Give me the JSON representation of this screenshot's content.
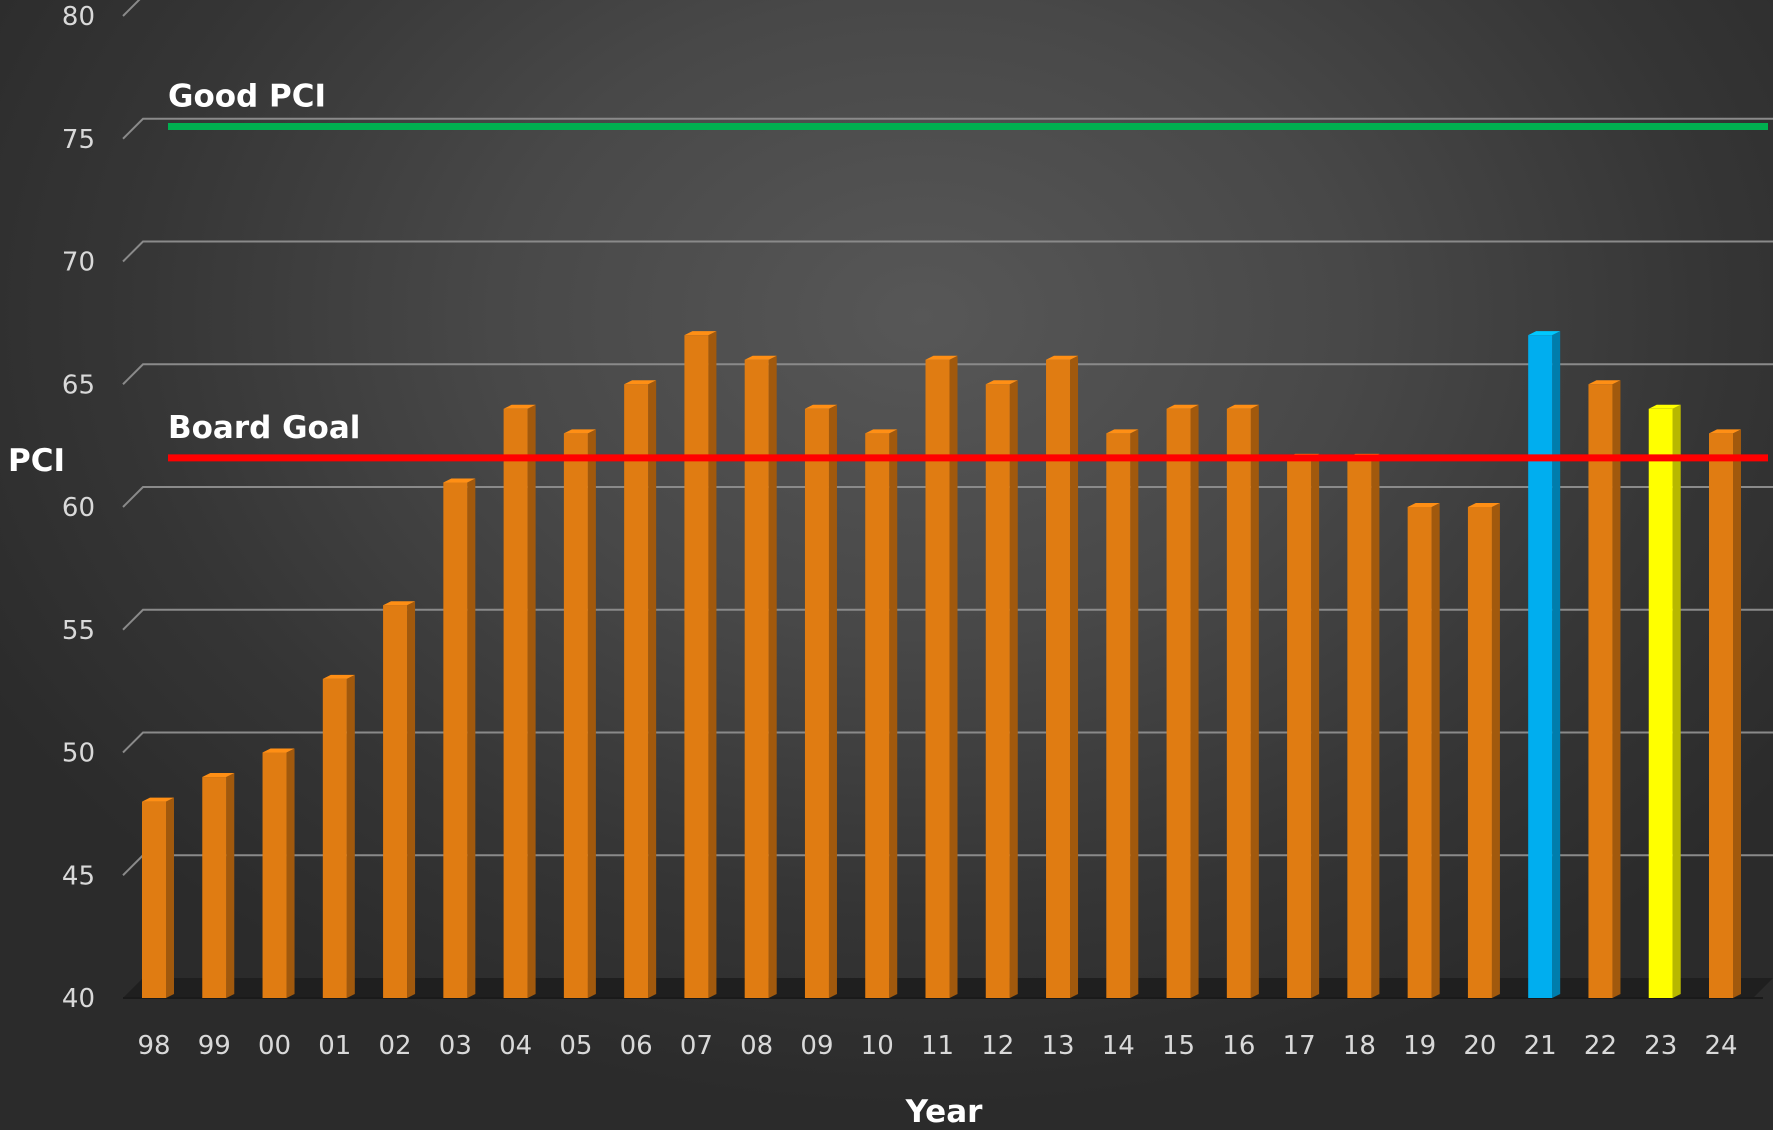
{
  "chart_data": {
    "type": "bar",
    "xlabel": "Year",
    "ylabel": "PCI",
    "ylim": [
      40,
      80
    ],
    "yticks": [
      40,
      45,
      50,
      55,
      60,
      65,
      70,
      75,
      80
    ],
    "grid": true,
    "categories": [
      "98",
      "99",
      "00",
      "01",
      "02",
      "03",
      "04",
      "05",
      "06",
      "07",
      "08",
      "09",
      "10",
      "11",
      "12",
      "13",
      "14",
      "15",
      "16",
      "17",
      "18",
      "19",
      "20",
      "21",
      "22",
      "23",
      "24"
    ],
    "values": [
      48,
      49,
      50,
      53,
      56,
      61,
      64,
      63,
      65,
      67,
      66,
      64,
      63,
      66,
      65,
      66,
      63,
      64,
      64,
      62,
      62,
      60,
      60,
      67,
      65,
      64,
      63
    ],
    "bar_colors": {
      "default": "#e07c12",
      "21": "#00aeef",
      "23": "#ffff00"
    },
    "reference_lines": [
      {
        "label": "Good PCI",
        "value": 75.5,
        "color": "#00b050"
      },
      {
        "label": "Board Goal",
        "value": 62,
        "color": "#ff0000"
      }
    ]
  }
}
